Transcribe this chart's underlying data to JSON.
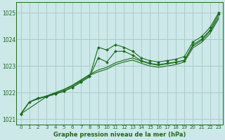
{
  "bg_color": "#cce8e8",
  "grid_color": "#aacccc",
  "line_color": "#1a6b1a",
  "xlabel": "Graphe pression niveau de la mer (hPa)",
  "xlim": [
    -0.5,
    23.5
  ],
  "ylim": [
    1020.8,
    1025.4
  ],
  "yticks": [
    1021,
    1022,
    1023,
    1024,
    1025
  ],
  "xticks": [
    0,
    1,
    2,
    3,
    4,
    5,
    6,
    7,
    8,
    9,
    10,
    11,
    12,
    13,
    14,
    15,
    16,
    17,
    18,
    19,
    20,
    21,
    22,
    23
  ],
  "series": [
    {
      "x": [
        0,
        1,
        2,
        3,
        4,
        5,
        6,
        7,
        8,
        9,
        10,
        11,
        12,
        13,
        14,
        15,
        16,
        17,
        18,
        19,
        20,
        21,
        22,
        23
      ],
      "y": [
        1021.2,
        1021.65,
        1021.8,
        1021.85,
        1021.95,
        1022.05,
        1022.2,
        1022.4,
        1022.6,
        1023.7,
        1023.6,
        1023.8,
        1023.7,
        1023.55,
        1023.3,
        1023.2,
        1023.15,
        1023.2,
        1023.25,
        1023.35,
        1023.9,
        1024.1,
        1024.45,
        1025.0
      ],
      "show_markers": true
    },
    {
      "x": [
        0,
        3,
        4,
        5,
        6,
        7,
        8,
        9,
        10,
        11,
        12,
        13,
        14,
        15,
        16,
        17,
        18,
        19,
        20,
        21,
        22,
        23
      ],
      "y": [
        1021.2,
        1021.85,
        1021.95,
        1022.05,
        1022.2,
        1022.4,
        1022.6,
        1023.3,
        1023.15,
        1023.55,
        1023.55,
        1023.4,
        1023.2,
        1023.1,
        1023.05,
        1023.1,
        1023.15,
        1023.2,
        1023.8,
        1024.0,
        1024.35,
        1024.95
      ],
      "show_markers": true
    },
    {
      "x": [
        0,
        1,
        2,
        3,
        4,
        5,
        6,
        7,
        8,
        9,
        10,
        11,
        12,
        13,
        14,
        15,
        16,
        17,
        18,
        19,
        20,
        21,
        22,
        23
      ],
      "y": [
        1021.2,
        1021.65,
        1021.78,
        1021.88,
        1022.0,
        1022.12,
        1022.28,
        1022.48,
        1022.68,
        1022.85,
        1022.95,
        1023.12,
        1023.22,
        1023.3,
        1023.18,
        1023.08,
        1023.03,
        1023.08,
        1023.13,
        1023.22,
        1023.75,
        1023.95,
        1024.3,
        1024.85
      ],
      "show_markers": false
    },
    {
      "x": [
        0,
        1,
        2,
        3,
        4,
        5,
        6,
        7,
        8,
        9,
        10,
        11,
        12,
        13,
        14,
        15,
        16,
        17,
        18,
        19,
        20,
        21,
        22,
        23
      ],
      "y": [
        1021.2,
        1021.65,
        1021.76,
        1021.86,
        1021.98,
        1022.1,
        1022.25,
        1022.45,
        1022.65,
        1022.78,
        1022.88,
        1023.05,
        1023.15,
        1023.22,
        1023.1,
        1023.0,
        1022.95,
        1023.0,
        1023.05,
        1023.15,
        1023.68,
        1023.88,
        1024.22,
        1024.78
      ],
      "show_markers": false
    }
  ]
}
